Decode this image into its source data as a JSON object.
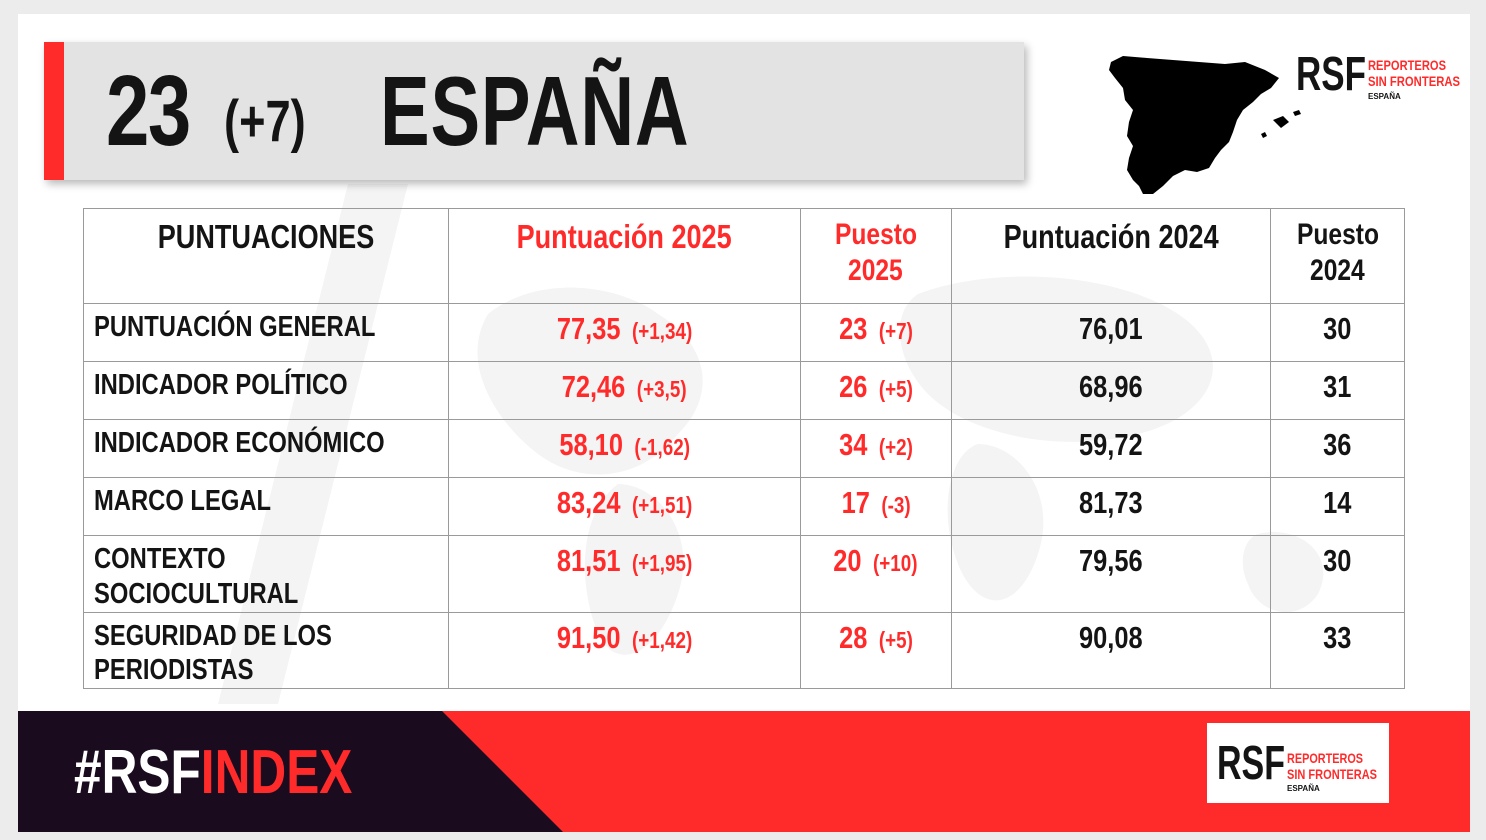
{
  "header": {
    "rank": "23",
    "rank_change": "(+7)",
    "country": "ESPAÑA"
  },
  "logo": {
    "mark": "RSF",
    "line1": "REPORTEROS",
    "line2": "SIN FRONTERAS",
    "line3": "ESPAÑA"
  },
  "table": {
    "headers": [
      {
        "line1": "PUNTUACIONES",
        "line2": ""
      },
      {
        "line1": "Puntuación 2025",
        "line2": ""
      },
      {
        "line1": "Puesto",
        "line2": "2025"
      },
      {
        "line1": "Puntuación 2024",
        "line2": ""
      },
      {
        "line1": "Puesto",
        "line2": "2024"
      }
    ],
    "rows": [
      {
        "label_line1": "PUNTUACIÓN GENERAL",
        "label_line2": "",
        "score_2025": "77,35",
        "score_change": "(+1,34)",
        "rank_2025": "23",
        "rank_change": "(+7)",
        "score_2024": "76,01",
        "rank_2024": "30"
      },
      {
        "label_line1": "INDICADOR POLÍTICO",
        "label_line2": "",
        "score_2025": "72,46",
        "score_change": "(+3,5)",
        "rank_2025": "26",
        "rank_change": "(+5)",
        "score_2024": "68,96",
        "rank_2024": "31"
      },
      {
        "label_line1": "INDICADOR ECONÓMICO",
        "label_line2": "",
        "score_2025": "58,10",
        "score_change": "(-1,62)",
        "rank_2025": "34",
        "rank_change": "(+2)",
        "score_2024": "59,72",
        "rank_2024": "36"
      },
      {
        "label_line1": "MARCO LEGAL",
        "label_line2": "",
        "score_2025": "83,24",
        "score_change": "(+1,51)",
        "rank_2025": "17",
        "rank_change": "(-3)",
        "score_2024": "81,73",
        "rank_2024": "14"
      },
      {
        "label_line1": "CONTEXTO",
        "label_line2": "SOCIOCULTURAL",
        "score_2025": "81,51",
        "score_change": "(+1,95)",
        "rank_2025": "20",
        "rank_change": "(+10)",
        "score_2024": "79,56",
        "rank_2024": "30"
      },
      {
        "label_line1": "SEGURIDAD DE LOS",
        "label_line2": "PERIODISTAS",
        "score_2025": "91,50",
        "score_change": "(+1,42)",
        "rank_2025": "28",
        "rank_change": "(+5)",
        "score_2024": "90,08",
        "rank_2024": "33"
      }
    ]
  },
  "footer": {
    "hashtag_white": "#RSF",
    "hashtag_red": "INDEX"
  },
  "colors": {
    "accent_red": "#ff2b2b",
    "dark_purple": "#1a0b1e",
    "text_dark": "#141414"
  }
}
